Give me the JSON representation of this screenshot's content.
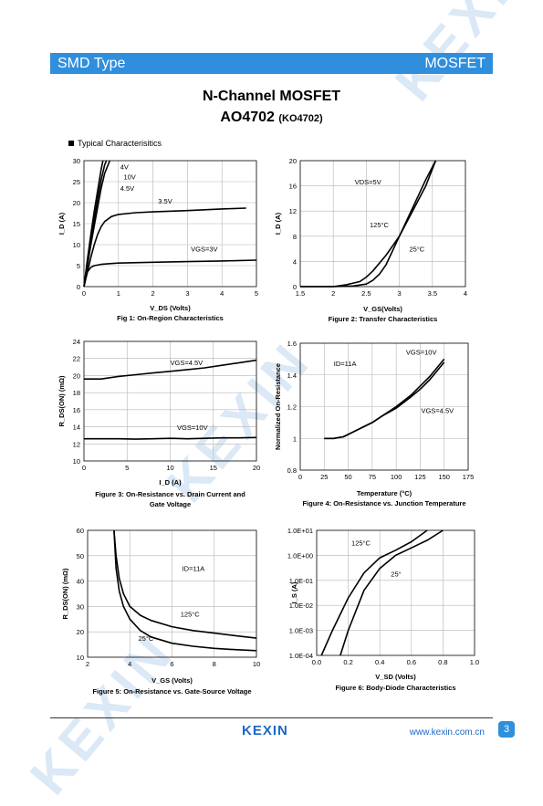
{
  "header": {
    "left": "SMD Type",
    "right": "MOSFET"
  },
  "title": "N-Channel MOSFET",
  "part_number": "AO4702",
  "part_alt": "(KO4702)",
  "section": "Typical  Characterisitics",
  "watermark": "KEXIN",
  "footer": {
    "logo": "KEXIN",
    "url": "www.kexin.com.cn",
    "page": "3"
  },
  "chart_data": [
    {
      "id": "fig1",
      "type": "line",
      "caption": "Fig 1: On-Region Characteristics",
      "xlabel": "V_DS (Volts)",
      "ylabel": "I_D (A)",
      "xlim": [
        0,
        5
      ],
      "ylim": [
        0,
        30
      ],
      "xticks": [
        "0",
        "1",
        "2",
        "3",
        "4",
        "5"
      ],
      "yticks": [
        "0",
        "5",
        "10",
        "15",
        "20",
        "25",
        "30"
      ],
      "annotations": [
        "4V",
        "10V",
        "4.5V",
        "3.5V",
        "VGS=3V"
      ],
      "series": [
        {
          "name": "4V",
          "x": [
            0,
            0.1,
            0.2,
            0.3,
            0.4,
            0.5,
            0.6,
            0.75
          ],
          "y": [
            0,
            5,
            10,
            14.5,
            19,
            23.5,
            27,
            30
          ]
        },
        {
          "name": "10V",
          "x": [
            0,
            0.1,
            0.2,
            0.3,
            0.4,
            0.5,
            0.55
          ],
          "y": [
            0,
            6.5,
            12.5,
            18,
            23,
            28,
            30
          ]
        },
        {
          "name": "4.5V",
          "x": [
            0,
            0.1,
            0.2,
            0.3,
            0.4,
            0.5,
            0.6,
            0.65
          ],
          "y": [
            0,
            5.5,
            11,
            16,
            21,
            25.5,
            29,
            30
          ]
        },
        {
          "name": "3.5V",
          "x": [
            0,
            0.1,
            0.2,
            0.3,
            0.4,
            0.5,
            0.6,
            0.8,
            1.0,
            1.5,
            2,
            3,
            4,
            4.7
          ],
          "y": [
            0,
            3.5,
            7,
            10,
            12.5,
            14.3,
            15.5,
            16.7,
            17.2,
            17.6,
            17.8,
            18.1,
            18.5,
            18.7
          ]
        },
        {
          "name": "3V",
          "x": [
            0,
            0.05,
            0.1,
            0.2,
            0.3,
            0.5,
            0.8,
            1,
            2,
            3,
            4,
            5
          ],
          "y": [
            0,
            2,
            3.5,
            4.6,
            5,
            5.3,
            5.5,
            5.6,
            5.8,
            5.95,
            6.1,
            6.3
          ]
        }
      ]
    },
    {
      "id": "fig2",
      "type": "line",
      "caption": "Figure 2: Transfer Characteristics",
      "xlabel": "V_GS(Volts)",
      "ylabel": "I_D (A)",
      "xlim": [
        1.5,
        4
      ],
      "ylim": [
        0,
        20
      ],
      "xticks": [
        "1.5",
        "2",
        "2.5",
        "3",
        "3.5",
        "4"
      ],
      "yticks": [
        "0",
        "4",
        "8",
        "12",
        "16",
        "20"
      ],
      "annotations": [
        "VDS=5V",
        "125°C",
        "25°C"
      ],
      "series": [
        {
          "name": "125°C",
          "x": [
            1.5,
            2,
            2.2,
            2.4,
            2.5,
            2.6,
            2.8,
            3,
            3.2,
            3.4,
            3.55
          ],
          "y": [
            0,
            0,
            0.3,
            0.8,
            1.5,
            2.5,
            5,
            8,
            12,
            16,
            20
          ]
        },
        {
          "name": "25°C",
          "x": [
            1.5,
            2,
            2.3,
            2.5,
            2.6,
            2.7,
            2.8,
            3,
            3.2,
            3.4,
            3.55
          ],
          "y": [
            0,
            0,
            0.1,
            0.4,
            1,
            2,
            3.5,
            8,
            12.5,
            17,
            20
          ]
        }
      ]
    },
    {
      "id": "fig3",
      "type": "line",
      "caption": "Figure 3: On-Resistance vs. Drain Current and Gate Voltage",
      "xlabel": "I_D (A)",
      "ylabel": "R_DS(ON) (mΩ)",
      "xlim": [
        0,
        20
      ],
      "ylim": [
        10,
        24
      ],
      "xticks": [
        "0",
        "5",
        "10",
        "15",
        "20"
      ],
      "yticks": [
        "10",
        "12",
        "14",
        "16",
        "18",
        "20",
        "22",
        "24"
      ],
      "annotations": [
        "VGS=4.5V",
        "VGS=10V"
      ],
      "series": [
        {
          "name": "VGS=4.5V",
          "x": [
            0,
            2,
            4,
            6,
            8,
            10,
            12,
            14,
            16,
            18,
            20
          ],
          "y": [
            19.6,
            19.6,
            19.9,
            20.1,
            20.3,
            20.5,
            20.7,
            20.9,
            21.2,
            21.5,
            21.8
          ]
        },
        {
          "name": "VGS=10V",
          "x": [
            0,
            2,
            4,
            6,
            8,
            10,
            12,
            14,
            16,
            18,
            20
          ],
          "y": [
            12.6,
            12.6,
            12.6,
            12.55,
            12.6,
            12.65,
            12.6,
            12.65,
            12.7,
            12.7,
            12.75
          ]
        }
      ]
    },
    {
      "id": "fig4",
      "type": "line",
      "caption": "Figure 4: On-Resistance vs. Junction Temperature",
      "xlabel": "Temperature (°C)",
      "ylabel": "Normalized On-Resistance",
      "xlim": [
        0,
        175
      ],
      "ylim": [
        0.8,
        1.6
      ],
      "xticks": [
        "0",
        "25",
        "50",
        "75",
        "100",
        "125",
        "150",
        "175"
      ],
      "yticks": [
        "0.8",
        "1",
        "1.2",
        "1.4",
        "1.6"
      ],
      "annotations": [
        "ID=11A",
        "VGS=10V",
        "VGS=4.5V"
      ],
      "series": [
        {
          "name": "VGS=10V",
          "x": [
            25,
            35,
            45,
            55,
            65,
            75,
            85,
            100,
            115,
            125,
            135,
            150
          ],
          "y": [
            1,
            1,
            1.01,
            1.04,
            1.07,
            1.1,
            1.14,
            1.2,
            1.27,
            1.33,
            1.39,
            1.5
          ]
        },
        {
          "name": "VGS=4.5V",
          "x": [
            25,
            35,
            45,
            55,
            65,
            75,
            85,
            100,
            115,
            125,
            135,
            150
          ],
          "y": [
            1,
            1,
            1.01,
            1.04,
            1.07,
            1.1,
            1.14,
            1.19,
            1.26,
            1.31,
            1.37,
            1.48
          ]
        }
      ]
    },
    {
      "id": "fig5",
      "type": "line",
      "caption": "Figure 5: On-Resistance vs. Gate-Source Voltage",
      "xlabel": "V_GS (Volts)",
      "ylabel": "R_DS(ON) (mΩ)",
      "xlim": [
        2,
        10
      ],
      "ylim": [
        10,
        60
      ],
      "xticks": [
        "2",
        "4",
        "6",
        "8",
        "10"
      ],
      "yticks": [
        "10",
        "20",
        "30",
        "40",
        "50",
        "60"
      ],
      "annotations": [
        "ID=11A",
        "125°C",
        "25°C"
      ],
      "series": [
        {
          "name": "125°C",
          "x": [
            3.25,
            3.35,
            3.5,
            3.7,
            4,
            4.5,
            5,
            6,
            7,
            8,
            9,
            10
          ],
          "y": [
            60,
            50,
            41,
            35,
            30,
            26.5,
            24.5,
            22,
            20.5,
            19.5,
            18.5,
            17.5
          ]
        },
        {
          "name": "25°C",
          "x": [
            3.25,
            3.35,
            3.5,
            3.7,
            4,
            4.5,
            5,
            6,
            7,
            8,
            9,
            10
          ],
          "y": [
            60,
            45,
            36,
            30,
            25,
            20.5,
            18,
            15.5,
            14.3,
            13.5,
            13,
            12.6
          ]
        }
      ]
    },
    {
      "id": "fig6",
      "type": "line",
      "yscale": "log",
      "caption": "Figure 6: Body-Diode Characteristics",
      "xlabel": "V_SD (Volts)",
      "ylabel": "I_S (A)",
      "xlim": [
        0,
        1
      ],
      "ylim": [
        0.0001,
        10
      ],
      "xticks": [
        "0.0",
        "0.2",
        "0.4",
        "0.6",
        "0.8",
        "1.0"
      ],
      "yticks": [
        "1.0E-04",
        "1.0E-03",
        "1.0E-02",
        "1.0E-01",
        "1.0E+00",
        "1.0E+01"
      ],
      "annotations": [
        "125°C",
        "25°"
      ],
      "series": [
        {
          "name": "125°C",
          "x": [
            0.03,
            0.1,
            0.2,
            0.3,
            0.4,
            0.5,
            0.6,
            0.7
          ],
          "y": [
            0.0001,
            0.001,
            0.02,
            0.2,
            0.8,
            1.6,
            3.5,
            10
          ]
        },
        {
          "name": "25°",
          "x": [
            0.15,
            0.2,
            0.3,
            0.4,
            0.5,
            0.6,
            0.7,
            0.8
          ],
          "y": [
            0.0001,
            0.001,
            0.04,
            0.3,
            1,
            2,
            4,
            10
          ]
        }
      ]
    }
  ]
}
